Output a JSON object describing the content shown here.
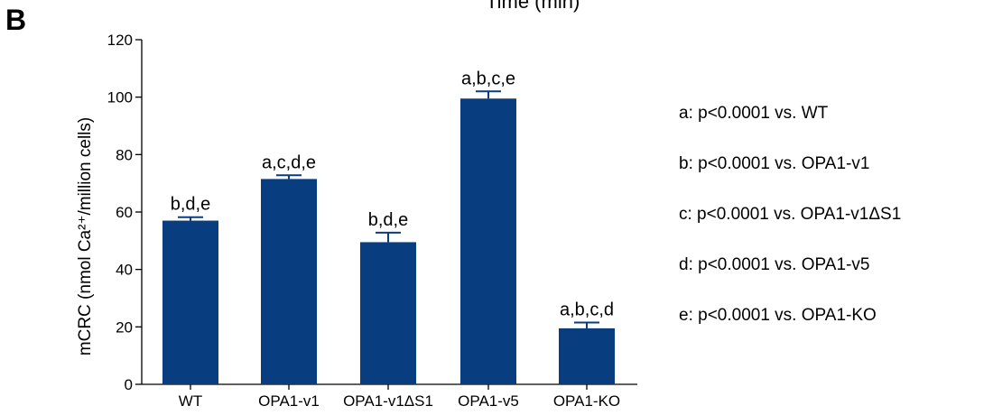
{
  "panel_label": "B",
  "top_clipped_text": "Time (min)",
  "chart_data": {
    "type": "bar",
    "title": "",
    "ylabel": "mCRC (nmol Ca²⁺/million cells)",
    "xlabel": "",
    "ylim": [
      0,
      120
    ],
    "yticks": [
      0,
      20,
      40,
      60,
      80,
      100,
      120
    ],
    "categories": [
      "WT",
      "OPA1-v1",
      "OPA1-v1ΔS1",
      "OPA1-v5",
      "OPA1-KO"
    ],
    "values": [
      57,
      71.5,
      49.5,
      99.5,
      19.5
    ],
    "errors": [
      1.2,
      1.3,
      3.3,
      2.5,
      2.0
    ],
    "annotations": [
      "b,d,e",
      "a,c,d,e",
      "b,d,e",
      "a,b,c,e",
      "a,b,c,d"
    ],
    "bar_color": "#083d7f",
    "grid": false,
    "legend": [
      "a: p<0.0001 vs. WT",
      "b: p<0.0001 vs. OPA1-v1",
      "c: p<0.0001 vs. OPA1-v1ΔS1",
      "d: p<0.0001 vs. OPA1-v5",
      "e: p<0.0001 vs. OPA1-KO"
    ],
    "legend_position": "right"
  }
}
